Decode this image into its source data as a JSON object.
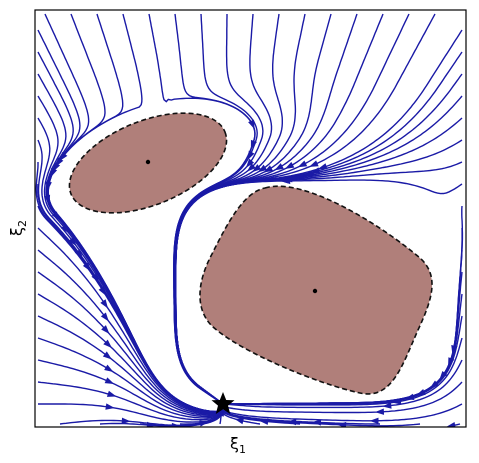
{
  "axes": {
    "xlabel": "ξ",
    "xlabel_sub": "1",
    "ylabel": "ξ",
    "ylabel_sub": "2"
  },
  "colors": {
    "streamline": "#1a1aa6",
    "obstacle_fill": "#b07f7a",
    "obstacle_border": "#111111",
    "frame": "#000000",
    "attractor": "#000000"
  },
  "obstacles": [
    {
      "name": "ellipse-obstacle",
      "shape": "ellipse",
      "has_center_marker": true
    },
    {
      "name": "rounded-rectangle-obstacle",
      "shape": "rounded-rectangle",
      "has_center_marker": true
    }
  ],
  "attractor": {
    "marker": "star"
  }
}
